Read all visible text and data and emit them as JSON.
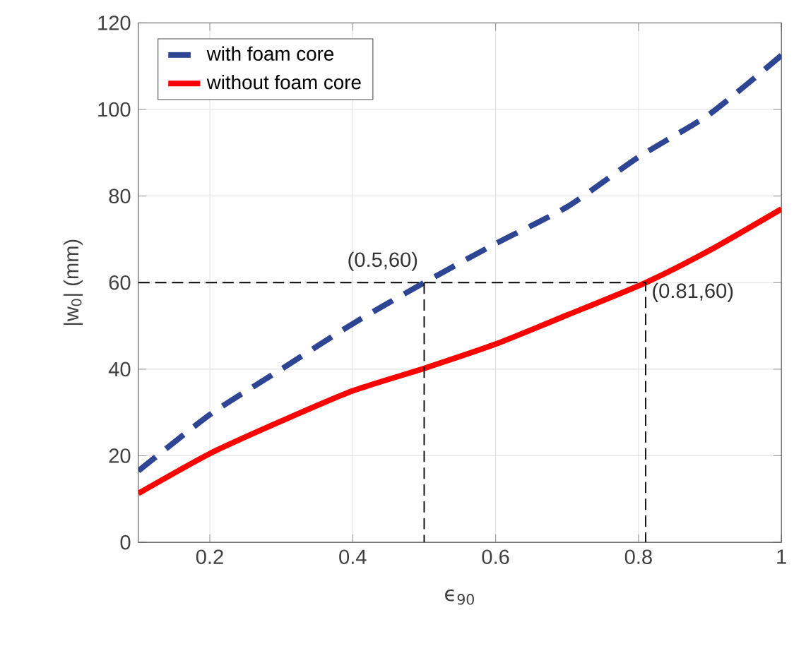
{
  "chart_data": {
    "type": "line",
    "xlabel": "ϵ$_{90}$",
    "ylabel": "|w$_{0}$| (mm)",
    "xlim": [
      0.1,
      1
    ],
    "ylim": [
      0,
      120
    ],
    "xticks": [
      0.2,
      0.4,
      0.6,
      0.8,
      1
    ],
    "yticks": [
      0,
      20,
      40,
      60,
      80,
      100,
      120
    ],
    "grid": true,
    "legend": "top left",
    "series": [
      {
        "name": "with foam core",
        "color": "#2e4593",
        "line_style": "dashed",
        "x": [
          0.1,
          0.2,
          0.3,
          0.4,
          0.5,
          0.6,
          0.7,
          0.8,
          0.9,
          1.0
        ],
        "values": [
          16.5,
          29.5,
          40,
          50.5,
          60,
          69,
          77.5,
          89,
          99,
          112.5
        ]
      },
      {
        "name": "without foam core",
        "color": "#ff0000",
        "line_style": "solid",
        "x": [
          0.1,
          0.2,
          0.3,
          0.4,
          0.5,
          0.6,
          0.7,
          0.81,
          0.9,
          1.0
        ],
        "values": [
          11.3,
          20.5,
          28,
          35,
          40.2,
          45.8,
          52.5,
          60,
          67.5,
          77
        ]
      },
      {
        "color": "#000000",
        "line_style": "dashed",
        "x": [
          0.1,
          0.81,
          0.81
        ],
        "values": [
          60,
          60,
          0
        ]
      },
      {
        "color": "#000000",
        "line_style": "dashed",
        "x": [
          0.5,
          0.5
        ],
        "values": [
          60,
          0
        ]
      }
    ],
    "annotations": [
      {
        "text": "(0.5,60)",
        "x": 0.5,
        "y": 60
      },
      {
        "text": "(0.81,60)",
        "x": 0.81,
        "y": 60
      }
    ]
  }
}
